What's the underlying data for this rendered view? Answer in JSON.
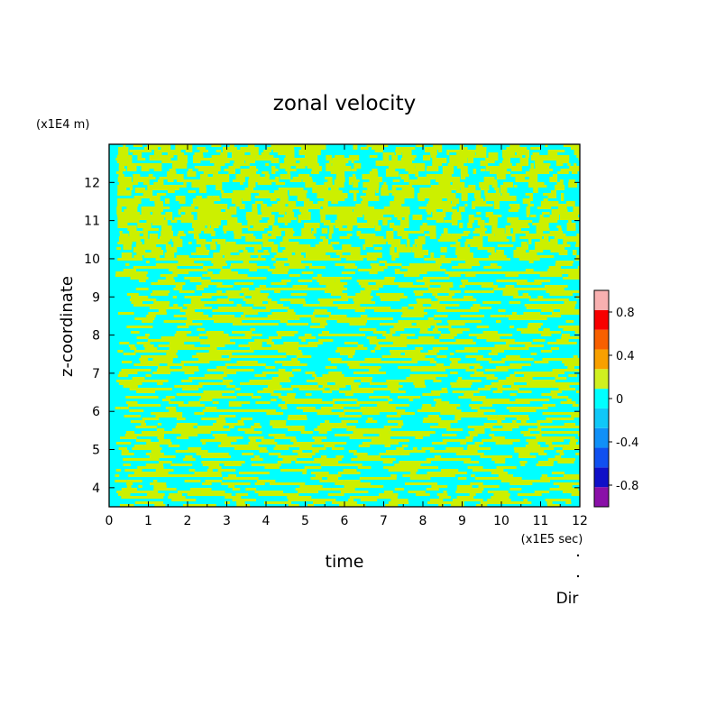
{
  "chart_data": {
    "type": "heatmap",
    "title": "zonal velocity",
    "xlabel": "time",
    "ylabel": "z-coordinate",
    "x_unit_label": "(x1E5 sec)",
    "y_unit_label": "(x1E4 m)",
    "xlim": [
      0,
      12
    ],
    "ylim": [
      3.5,
      13
    ],
    "x_ticks": [
      0,
      1,
      2,
      3,
      4,
      5,
      6,
      7,
      8,
      9,
      10,
      11,
      12
    ],
    "y_ticks": [
      4,
      5,
      6,
      7,
      8,
      9,
      10,
      11,
      12
    ],
    "colorbar": {
      "range": [
        -1,
        1
      ],
      "levels": [
        -1,
        -0.8,
        -0.6,
        -0.4,
        -0.2,
        0,
        0.2,
        0.4,
        0.6,
        0.8,
        1
      ],
      "colors": [
        "#8a10a8",
        "#1010c8",
        "#1050f0",
        "#1090f8",
        "#10c8f8",
        "#00ffff",
        "#d0f020",
        "#f8a000",
        "#f86000",
        "#f80000",
        "#f8b0b0"
      ],
      "tick_labels": [
        "0.8",
        "0.4",
        "0",
        "-0.4",
        "-0.8"
      ],
      "tick_values": [
        0.8,
        0.4,
        0,
        -0.4,
        -0.8
      ]
    },
    "field_note": "values alternate between the 0 to 0.2 band (yellow-green) and the -0.2 to 0 band (cyan)",
    "colors": {
      "positive": "#ccf000",
      "negative": "#00ffff"
    },
    "footer_label": "Dir"
  }
}
